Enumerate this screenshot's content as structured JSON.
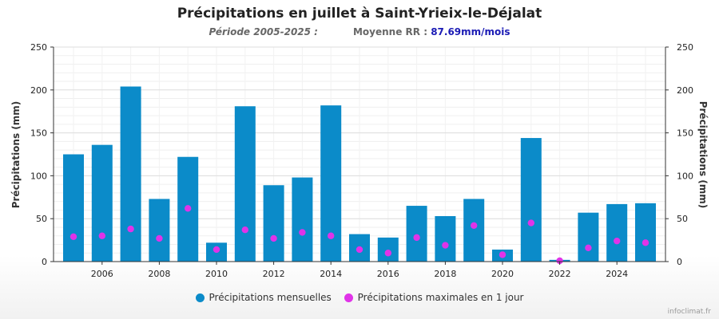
{
  "title": "Précipitations en juillet à Saint-Yrieix-le-Déjalat",
  "subtitle": {
    "period": "Période 2005-2025 :",
    "average_label": "Moyenne RR :",
    "average_value": "87.69mm/mois"
  },
  "source": "infoclimat.fr",
  "colors": {
    "monthly": "#0b8bc9",
    "max_daily": "#e033e8"
  },
  "chart_data": {
    "type": "bar",
    "title": "Précipitations en juillet à Saint-Yrieix-le-Déjalat",
    "ylabel_left": "Précipitations (mm)",
    "ylabel_right": "Précipitations (mm)",
    "ylim": [
      0,
      250
    ],
    "yticks": [
      0,
      50,
      100,
      150,
      200,
      250
    ],
    "xticks": [
      2006,
      2008,
      2010,
      2012,
      2014,
      2016,
      2018,
      2020,
      2022,
      2024
    ],
    "grid": true,
    "legend_position": "bottom",
    "categories": [
      2005,
      2006,
      2007,
      2008,
      2009,
      2010,
      2011,
      2012,
      2013,
      2014,
      2015,
      2016,
      2017,
      2018,
      2019,
      2020,
      2021,
      2022,
      2023,
      2024,
      2025
    ],
    "series": [
      {
        "name": "Précipitations mensuelles",
        "type": "bar",
        "values": [
          125,
          136,
          204,
          73,
          122,
          22,
          181,
          89,
          98,
          182,
          32,
          28,
          65,
          53,
          73,
          14,
          144,
          2,
          57,
          67,
          68
        ]
      },
      {
        "name": "Précipitations maximales en 1 jour",
        "type": "scatter",
        "values": [
          29,
          30,
          38,
          27,
          62,
          14,
          37,
          27,
          34,
          30,
          14,
          10,
          28,
          19,
          42,
          8,
          45,
          1,
          16,
          24,
          22
        ]
      }
    ]
  }
}
